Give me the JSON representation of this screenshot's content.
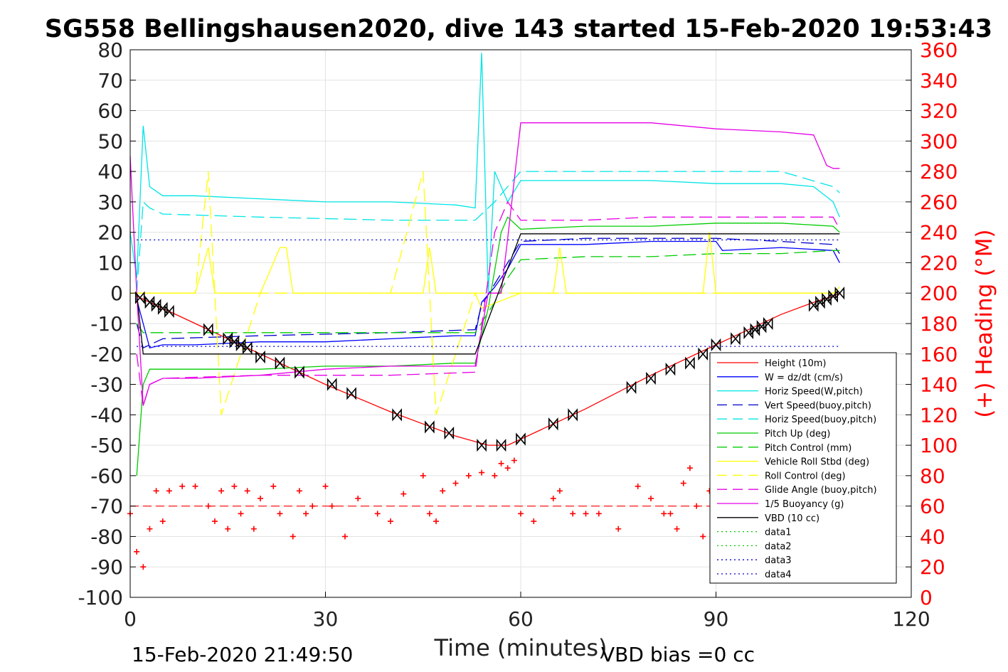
{
  "title": "SG558 Bellingshausen2020, dive 143 started 15-Feb-2020 19:53:43",
  "footer_left": "15-Feb-2020 21:49:50",
  "footer_right": "VBD bias =0 cc",
  "colors": {
    "height": "#ff0000",
    "w": "#0000ff",
    "horiz": "#00e5e5",
    "pitch": "#00cc00",
    "roll": "#ffff00",
    "buoy": "#e600e6",
    "vbd": "#000000",
    "right_axis": "#ff0000"
  },
  "chart_data": {
    "type": "line",
    "xlabel": "Time (minutes)",
    "ylabel_right": "(+) Heading (°M)",
    "xlim": [
      0,
      120
    ],
    "ylim": [
      -100,
      80
    ],
    "ylim_right": [
      0,
      360
    ],
    "x_ticks": [
      "0",
      "30",
      "60",
      "90",
      "120"
    ],
    "y_ticks": [
      "80",
      "70",
      "60",
      "50",
      "40",
      "30",
      "20",
      "10",
      "0",
      "-10",
      "-20",
      "-30",
      "-40",
      "-50",
      "-60",
      "-70",
      "-80",
      "-90",
      "-100"
    ],
    "y_right_ticks": [
      "360",
      "340",
      "320",
      "300",
      "280",
      "260",
      "240",
      "220",
      "200",
      "180",
      "160",
      "140",
      "120",
      "100",
      "80",
      "60",
      "40",
      "20",
      "0"
    ],
    "grid": true,
    "legend_position": "lower-right",
    "series": [
      {
        "name": "Height (10m)",
        "style": "solid",
        "color": "#ff0000",
        "x": [
          1,
          2,
          5,
          10,
          20,
          30,
          40,
          45,
          50,
          55,
          58,
          60,
          70,
          80,
          90,
          100,
          105,
          108,
          109
        ],
        "y": [
          -1,
          -2,
          -5,
          -10,
          -20,
          -30,
          -39,
          -43,
          -47,
          -50,
          -50,
          -48,
          -38,
          -27,
          -17,
          -7,
          -3,
          -1,
          0
        ]
      },
      {
        "name": "W = dz/dt (cm/s)",
        "style": "solid",
        "color": "#0000ff",
        "x": [
          1,
          2,
          3,
          5,
          10,
          20,
          30,
          40,
          50,
          53,
          54,
          56,
          58,
          60,
          70,
          80,
          90,
          91,
          100,
          108,
          109
        ],
        "y": [
          -2,
          -10,
          -18,
          -17,
          -17,
          -16,
          -16,
          -15,
          -14,
          -14,
          -3,
          2,
          8,
          16,
          16,
          17,
          17,
          14,
          15,
          14,
          10
        ]
      },
      {
        "name": "Horiz Speed(W,pitch)",
        "style": "solid",
        "color": "#00e5e5",
        "x": [
          0,
          1,
          2,
          3,
          5,
          10,
          20,
          30,
          40,
          50,
          53,
          54,
          55,
          56,
          58,
          60,
          70,
          80,
          90,
          100,
          105,
          108,
          109
        ],
        "y": [
          20,
          5,
          55,
          35,
          32,
          32,
          31,
          30,
          30,
          29,
          28,
          79,
          0,
          40,
          30,
          37,
          37,
          37,
          36,
          36,
          35,
          30,
          25
        ]
      },
      {
        "name": "Vert Speed(buoy,pitch)",
        "style": "dashed",
        "color": "#0000cc",
        "x": [
          1,
          2,
          5,
          20,
          40,
          53,
          54,
          56,
          58,
          60,
          70,
          80,
          90,
          100,
          108,
          109
        ],
        "y": [
          -10,
          -18,
          -15,
          -14,
          -13,
          -12,
          -4,
          3,
          10,
          17,
          18,
          18,
          18,
          17,
          16,
          13
        ]
      },
      {
        "name": "Horiz Speed(buoy,pitch)",
        "style": "dashed",
        "color": "#00e5e5",
        "x": [
          1,
          2,
          3,
          5,
          20,
          40,
          53,
          56,
          58,
          60,
          70,
          80,
          90,
          100,
          108,
          109
        ],
        "y": [
          0,
          30,
          28,
          26,
          25,
          24,
          24,
          30,
          35,
          40,
          40,
          40,
          40,
          40,
          35,
          33
        ]
      },
      {
        "name": "Pitch Up (deg)",
        "style": "solid",
        "color": "#00cc00",
        "x": [
          1,
          2,
          3,
          5,
          10,
          20,
          30,
          40,
          50,
          53,
          55,
          57,
          58,
          60,
          70,
          80,
          90,
          100,
          108,
          109
        ],
        "y": [
          -60,
          -30,
          -25,
          -25,
          -25,
          -25,
          -24,
          -24,
          -23,
          -23,
          -5,
          20,
          25,
          21,
          22,
          22,
          23,
          23,
          22,
          20
        ]
      },
      {
        "name": "Pitch Control (mm)",
        "style": "dashed",
        "color": "#00cc00",
        "x": [
          1,
          2,
          3,
          5,
          20,
          40,
          53,
          56,
          58,
          60,
          70,
          80,
          90,
          100,
          108,
          109
        ],
        "y": [
          -10,
          -13,
          -13,
          -13,
          -13,
          -13,
          -13,
          -3,
          5,
          11,
          12,
          12,
          13,
          13,
          14,
          14
        ]
      },
      {
        "name": "Vehicle Roll Stbd (deg)",
        "style": "solid",
        "color": "#ffff00",
        "x": [
          0,
          5,
          10,
          12,
          13,
          14,
          20,
          23,
          24,
          25,
          30,
          40,
          45,
          46,
          47,
          50,
          53,
          54,
          60,
          65,
          66,
          67,
          70,
          80,
          88,
          89,
          90,
          100,
          108,
          109
        ],
        "y": [
          0,
          0,
          0,
          15,
          0,
          0,
          0,
          15,
          15,
          0,
          0,
          0,
          0,
          15,
          0,
          0,
          0,
          -5,
          0,
          0,
          15,
          0,
          0,
          0,
          0,
          20,
          0,
          0,
          0,
          2
        ]
      },
      {
        "name": "Roll Control (deg)",
        "style": "dashed",
        "color": "#ffff00",
        "x": [
          0,
          5,
          10,
          12,
          13,
          14,
          20,
          30,
          40,
          45,
          46,
          47,
          53,
          60,
          70,
          80,
          90,
          100,
          108,
          109
        ],
        "y": [
          0,
          0,
          0,
          40,
          0,
          -40,
          0,
          0,
          0,
          40,
          0,
          -40,
          0,
          0,
          0,
          0,
          0,
          0,
          0,
          0
        ]
      },
      {
        "name": "Glide Angle (buoy,pitch)",
        "style": "dashed",
        "color": "#e600e6",
        "x": [
          1,
          2,
          3,
          5,
          20,
          40,
          53,
          56,
          58,
          60,
          70,
          80,
          90,
          100,
          108,
          109
        ],
        "y": [
          -20,
          -37,
          -30,
          -28,
          -27,
          -27,
          -26,
          20,
          30,
          24,
          24,
          25,
          25,
          25,
          25,
          21
        ]
      },
      {
        "name": "1/5 Buoyancy (g)",
        "style": "solid",
        "color": "#e600e6",
        "x": [
          0,
          1,
          2,
          3,
          5,
          10,
          20,
          30,
          40,
          50,
          53,
          55,
          57,
          58,
          60,
          70,
          80,
          90,
          100,
          105,
          107,
          108,
          109
        ],
        "y": [
          45,
          0,
          -37,
          -30,
          -28,
          -28,
          -27,
          -25,
          -24,
          -24,
          -24,
          0,
          0,
          18,
          56,
          56,
          56,
          54,
          53,
          52,
          42,
          41,
          41
        ]
      },
      {
        "name": "VBD (10 cc)",
        "style": "solid",
        "color": "#000000",
        "x": [
          1,
          2,
          53,
          60,
          109
        ],
        "y": [
          0,
          -20,
          -20,
          19.5,
          19.5
        ]
      },
      {
        "name": "data1",
        "style": "dotted",
        "color": "#00cc00",
        "x": [],
        "y": []
      },
      {
        "name": "data2",
        "style": "dotted",
        "color": "#00cc00",
        "x": [],
        "y": []
      },
      {
        "name": "data3",
        "style": "dotted",
        "color": "#0000cc",
        "x": [
          1,
          109
        ],
        "y": [
          -17.5,
          -17.5
        ]
      },
      {
        "name": "data4",
        "style": "dotted",
        "color": "#0000cc",
        "x": [
          1,
          109
        ],
        "y": [
          17.5,
          17.5
        ]
      }
    ],
    "heading": {
      "axis": "right",
      "marker": "+",
      "color": "#ff0000",
      "mean": 60,
      "x": [
        0,
        1,
        2,
        3,
        4,
        5,
        6,
        8,
        10,
        12,
        13,
        14,
        15,
        16,
        17,
        18,
        19,
        20,
        22,
        23,
        25,
        26,
        27,
        28,
        30,
        31,
        33,
        35,
        38,
        40,
        42,
        45,
        46,
        47,
        48,
        50,
        52,
        54,
        56,
        57,
        58,
        59,
        60,
        62,
        65,
        66,
        68,
        70,
        72,
        75,
        78,
        80,
        82,
        83,
        84,
        85,
        86,
        87,
        88,
        89
      ],
      "y": [
        55,
        30,
        20,
        45,
        70,
        50,
        70,
        73,
        73,
        60,
        50,
        70,
        45,
        73,
        55,
        70,
        45,
        65,
        73,
        55,
        40,
        70,
        55,
        60,
        73,
        60,
        40,
        65,
        55,
        50,
        68,
        80,
        55,
        50,
        70,
        75,
        80,
        82,
        80,
        88,
        85,
        90,
        55,
        50,
        65,
        70,
        55,
        55,
        55,
        45,
        73,
        65,
        55,
        55,
        45,
        75,
        85,
        60,
        40,
        70
      ]
    },
    "vehicle_markers": {
      "marker": "bowtie",
      "color": "#000000",
      "x": [
        1.5,
        3,
        4,
        5,
        6,
        12,
        15,
        16,
        17,
        18,
        20,
        23,
        26,
        31,
        34,
        41,
        46,
        49,
        54,
        57,
        60,
        65,
        68,
        77,
        80,
        83,
        86,
        88,
        90,
        93,
        95,
        96,
        97,
        98,
        105,
        106,
        107,
        108,
        109
      ],
      "y": [
        -1.5,
        -3,
        -4,
        -5,
        -6,
        -12,
        -15,
        -16,
        -17,
        -18,
        -21,
        -23,
        -26,
        -30,
        -33,
        -40,
        -44,
        -46,
        -50,
        -50,
        -48,
        -43,
        -40,
        -31,
        -28,
        -25,
        -23,
        -20,
        -17,
        -15,
        -13,
        -12,
        -11,
        -10,
        -4,
        -3,
        -2,
        -1,
        0
      ]
    }
  }
}
